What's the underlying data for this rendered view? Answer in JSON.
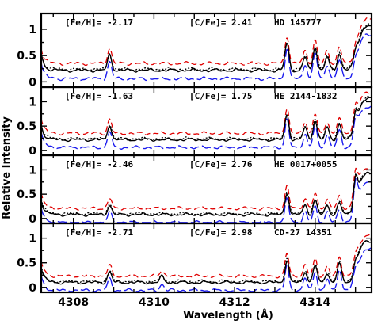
{
  "chart_data": {
    "type": "line",
    "xlabel": "Wavelength (Å)",
    "ylabel": "Relative Intensity",
    "xlim": [
      4307.2,
      4315.4
    ],
    "ylim": [
      -0.1,
      1.3
    ],
    "xticks": [
      4308,
      4310,
      4312,
      4314
    ],
    "xtick_labels": [
      "4308",
      "4310",
      "4312",
      "4314"
    ],
    "yticks": [
      0,
      0.5,
      1
    ],
    "ytick_labels": [
      "0",
      "0.5",
      "1"
    ],
    "colors": {
      "observed": "#000000",
      "model": "#000000",
      "model_high": "#e00000",
      "model_low": "#1a1aee"
    },
    "line_styles": {
      "observed": "solid",
      "model": "dotted",
      "model_high": "dashed",
      "model_low": "long-dash"
    },
    "panels": [
      {
        "feh_label": "[Fe/H]= -2.17",
        "cfe_label": "[C/Fe]= 2.41",
        "star": "HD 145777",
        "base_level": 0.22,
        "lines": [
          {
            "x": 4308.9,
            "depth": 0.3
          },
          {
            "x": 4313.3,
            "depth": 0.52
          },
          {
            "x": 4313.75,
            "depth": 0.25
          },
          {
            "x": 4314.0,
            "depth": 0.45
          },
          {
            "x": 4314.3,
            "depth": 0.25
          },
          {
            "x": 4314.6,
            "depth": 0.32
          },
          {
            "x": 4315.0,
            "depth": 0.15
          }
        ]
      },
      {
        "feh_label": "[Fe/H]= -1.63",
        "cfe_label": "[C/Fe]= 1.75",
        "star": "HE 2144-1832",
        "base_level": 0.22,
        "lines": [
          {
            "x": 4308.9,
            "depth": 0.3
          },
          {
            "x": 4313.3,
            "depth": 0.52
          },
          {
            "x": 4313.75,
            "depth": 0.25
          },
          {
            "x": 4314.0,
            "depth": 0.4
          },
          {
            "x": 4314.3,
            "depth": 0.25
          },
          {
            "x": 4314.6,
            "depth": 0.32
          },
          {
            "x": 4315.0,
            "depth": 0.35
          }
        ]
      },
      {
        "feh_label": "[Fe/H]= -2.46",
        "cfe_label": "[C/Fe]= 2.76",
        "star": "HE 0017+0055",
        "base_level": 0.08,
        "lines": [
          {
            "x": 4308.9,
            "depth": 0.2
          },
          {
            "x": 4313.3,
            "depth": 0.45
          },
          {
            "x": 4313.75,
            "depth": 0.2
          },
          {
            "x": 4314.0,
            "depth": 0.3
          },
          {
            "x": 4314.3,
            "depth": 0.2
          },
          {
            "x": 4314.6,
            "depth": 0.25
          },
          {
            "x": 4315.0,
            "depth": 0.55
          }
        ]
      },
      {
        "feh_label": "[Fe/H]= -2.71",
        "cfe_label": "[C/Fe]= 2.98",
        "star": "CD-27 14351",
        "base_level": 0.1,
        "lines": [
          {
            "x": 4308.9,
            "depth": 0.22
          },
          {
            "x": 4310.2,
            "depth": 0.12
          },
          {
            "x": 4313.3,
            "depth": 0.45
          },
          {
            "x": 4313.75,
            "depth": 0.22
          },
          {
            "x": 4314.0,
            "depth": 0.35
          },
          {
            "x": 4314.3,
            "depth": 0.2
          },
          {
            "x": 4314.6,
            "depth": 0.4
          },
          {
            "x": 4315.0,
            "depth": 0.2
          }
        ]
      }
    ],
    "legend": "none",
    "grid": false
  }
}
